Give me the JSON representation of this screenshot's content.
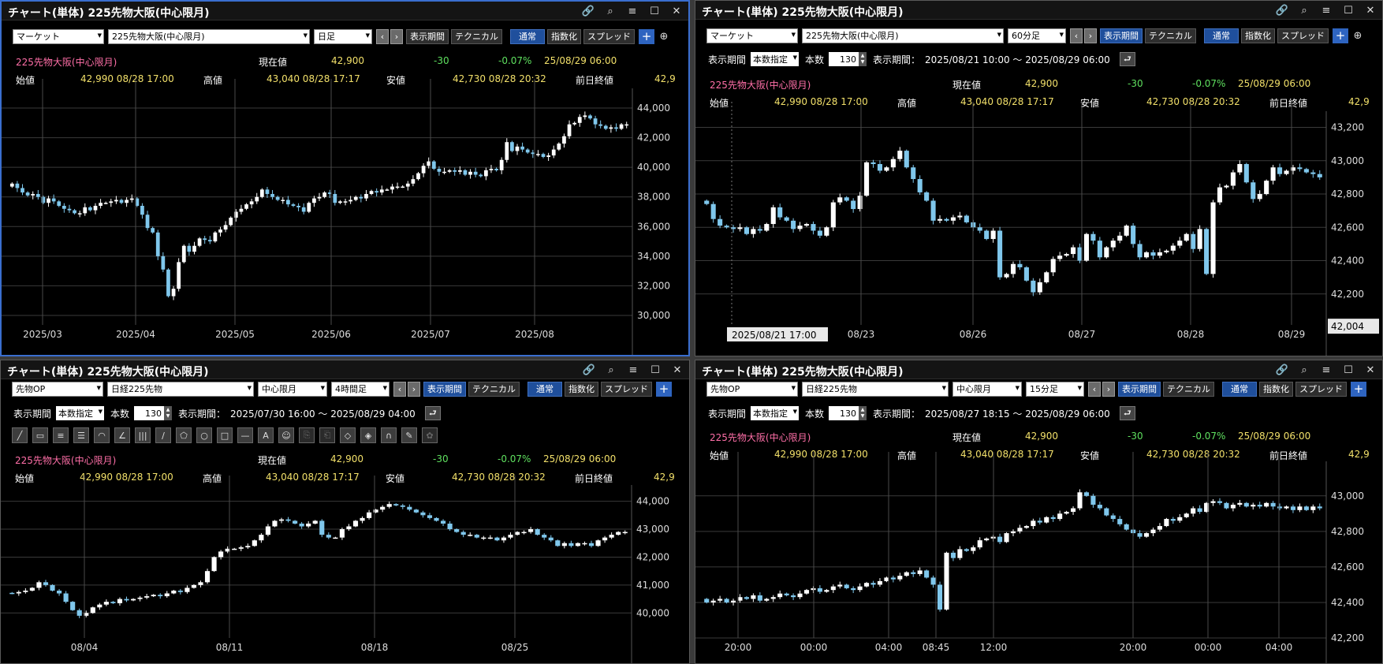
{
  "colors": {
    "up": "#ffffff",
    "down": "#7fc7ec",
    "grid": "#3a3a3a",
    "accent_blue": "#2e64c0",
    "pink": "#ff6fa8",
    "yellow": "#f2e06a",
    "green": "#5fe05f"
  },
  "icons": [
    "link-icon",
    "search-icon",
    "menu-icon",
    "maximize-icon",
    "close-icon",
    "zoom-icon",
    "plus-icon"
  ],
  "panels": [
    {
      "title": "チャート(単体) 225先物大阪(中心限月)",
      "controls": {
        "market": "マーケット",
        "symbol": "225先物大阪(中心限月)",
        "period": "日足",
        "display_period": "表示期間",
        "technical": "テクニカル",
        "normal": "通常",
        "index": "指数化",
        "spread": "スプレッド"
      },
      "info": {
        "name": "225先物大阪(中心限月)",
        "current_label": "現在値",
        "current": "42,900",
        "change": "-30",
        "change_pct": "-0.07%",
        "datetime": "25/08/29 06:00",
        "open_label": "始値",
        "open": "42,990 08/28 17:00",
        "high_label": "高値",
        "high": "43,040 08/28 17:17",
        "low_label": "安値",
        "low": "42,730 08/28 20:32",
        "prev_label": "前日終値",
        "prev": "42,9"
      },
      "chart_data": {
        "type": "candlestick",
        "y_ticks": [
          "44,000",
          "42,000",
          "40,000",
          "38,000",
          "36,000",
          "34,000",
          "32,000",
          "30,000"
        ],
        "ylim": [
          30000,
          44800
        ],
        "x_ticks": [
          "2025/03",
          "2025/04",
          "2025/05",
          "2025/06",
          "2025/07",
          "2025/08"
        ],
        "close": [
          38900,
          38600,
          38300,
          38100,
          38200,
          38000,
          37600,
          37900,
          37700,
          37400,
          37200,
          37100,
          36900,
          36900,
          37300,
          37100,
          37400,
          37600,
          37600,
          37700,
          37800,
          37600,
          37800,
          37900,
          37400,
          36800,
          35900,
          35600,
          34000,
          33100,
          31300,
          31800,
          33600,
          34700,
          34300,
          34700,
          35200,
          35100,
          35000,
          35600,
          35800,
          36100,
          36600,
          37000,
          37200,
          37500,
          37700,
          38000,
          38500,
          38200,
          38000,
          37800,
          37800,
          37500,
          37400,
          37300,
          37000,
          37600,
          37900,
          38000,
          38300,
          38200,
          37600,
          37700,
          37700,
          37800,
          38000,
          37900,
          38200,
          38400,
          38300,
          38500,
          38500,
          38700,
          38700,
          38700,
          38900,
          39200,
          39600,
          40100,
          40400,
          39900,
          39700,
          39700,
          39800,
          39700,
          39800,
          39500,
          39700,
          39500,
          39400,
          39800,
          39900,
          39800,
          40500,
          41700,
          41100,
          41400,
          41200,
          41000,
          40900,
          40900,
          40700,
          40800,
          41200,
          41600,
          42100,
          42900,
          43000,
          43400,
          43500,
          43300,
          42900,
          42800,
          42600,
          42700,
          42600,
          42900,
          42900
        ]
      },
      "data_source": "daily"
    },
    {
      "title": "チャート(単体) 225先物大阪(中心限月)",
      "controls": {
        "market": "マーケット",
        "symbol": "225先物大阪(中心限月)",
        "period": "60分足",
        "display_period": "表示期間",
        "technical": "テクニカル",
        "normal": "通常",
        "index": "指数化",
        "spread": "スプレッド"
      },
      "period_row": {
        "label": "表示期間",
        "mode": "本数指定",
        "count_label": "本数",
        "count": "130",
        "range_label": "表示期間：",
        "range": "2025/08/21 10:00 ～ 2025/08/29 06:00"
      },
      "info": {
        "name": "225先物大阪(中心限月)",
        "current_label": "現在値",
        "current": "42,900",
        "change": "-30",
        "change_pct": "-0.07%",
        "datetime": "25/08/29 06:00",
        "open_label": "始値",
        "open": "42,990 08/28 17:00",
        "high_label": "高値",
        "high": "43,040 08/28 17:17",
        "low_label": "安値",
        "low": "42,730 08/28 20:32",
        "prev_label": "前日終値",
        "prev": "42,9"
      },
      "chart_data": {
        "type": "candlestick",
        "y_ticks": [
          "43,200",
          "43,000",
          "42,800",
          "42,600",
          "42,400",
          "42,200"
        ],
        "ylim": [
          42000,
          43250
        ],
        "x_ticks": [
          "2025/08/21 17:00",
          "08/23",
          "08/26",
          "08/27",
          "08/28",
          "08/29"
        ],
        "cursor_price": "42,004",
        "close": [
          42740,
          42650,
          42610,
          42600,
          42590,
          42600,
          42560,
          42590,
          42580,
          42620,
          42720,
          42660,
          42640,
          42590,
          42610,
          42620,
          42580,
          42550,
          42600,
          42750,
          42780,
          42760,
          42710,
          42790,
          42990,
          42980,
          42940,
          42960,
          43010,
          43060,
          42960,
          42890,
          42810,
          42760,
          42640,
          42650,
          42640,
          42660,
          42670,
          42630,
          42600,
          42580,
          42530,
          42580,
          42300,
          42320,
          42380,
          42360,
          42280,
          42210,
          42270,
          42330,
          42410,
          42430,
          42440,
          42480,
          42400,
          42560,
          42520,
          42420,
          42480,
          42520,
          42550,
          42610,
          42500,
          42420,
          42450,
          42430,
          42450,
          42460,
          42490,
          42520,
          42560,
          42470,
          42590,
          42320,
          42750,
          42840,
          42850,
          42930,
          42980,
          42870,
          42770,
          42800,
          42880,
          42960,
          42920,
          42940,
          42960,
          42950,
          42930,
          42920,
          42900
        ]
      },
      "data_source": "hourly"
    },
    {
      "title": "チャート(単体) 225先物大阪(中心限月)",
      "controls": {
        "market": "先物OP",
        "symbol": "日経225先物",
        "month": "中心限月",
        "period": "4時間足",
        "display_period": "表示期間",
        "technical": "テクニカル",
        "normal": "通常",
        "index": "指数化",
        "spread": "スプレッド"
      },
      "period_row": {
        "label": "表示期間",
        "mode": "本数指定",
        "count_label": "本数",
        "count": "130",
        "range_label": "表示期間：",
        "range": "2025/07/30 16:00 ～ 2025/08/29 04:00"
      },
      "tools_icons": [
        "line-tool-icon",
        "ruler-tool-icon",
        "hlines-tool-icon",
        "hlines2-tool-icon",
        "arc-tool-icon",
        "fan-tool-icon",
        "vlines-tool-icon",
        "channel-tool-icon",
        "pentagon-tool-icon",
        "circle-tool-icon",
        "rect-tool-icon",
        "hline-tool-icon",
        "text-tool-icon",
        "stamp-tool-icon",
        "copy-tool-icon",
        "paste-tool-icon",
        "eraser-tool-icon",
        "eraser2-tool-icon",
        "magnet-tool-icon",
        "lock-tool-icon",
        "settings-tool-icon"
      ],
      "info": {
        "name": "225先物大阪(中心限月)",
        "current_label": "現在値",
        "current": "42,900",
        "change": "-30",
        "change_pct": "-0.07%",
        "datetime": "25/08/29 06:00",
        "open_label": "始値",
        "open": "42,990 08/28 17:00",
        "high_label": "高値",
        "high": "43,040 08/28 17:17",
        "low_label": "安値",
        "low": "42,730 08/28 20:32",
        "prev_label": "前日終値",
        "prev": "42,9"
      },
      "chart_data": {
        "type": "candlestick",
        "y_ticks": [
          "44,000",
          "43,000",
          "42,000",
          "41,000",
          "40,000"
        ],
        "ylim": [
          39500,
          44300
        ],
        "x_ticks": [
          "08/04",
          "08/11",
          "08/18",
          "08/25"
        ],
        "close": [
          40700,
          40750,
          40800,
          40900,
          41100,
          41000,
          40800,
          40700,
          40400,
          40100,
          39900,
          40000,
          40200,
          40300,
          40400,
          40350,
          40500,
          40450,
          40500,
          40550,
          40600,
          40650,
          40600,
          40700,
          40800,
          40750,
          40900,
          41000,
          41100,
          41500,
          42000,
          42200,
          42300,
          42300,
          42350,
          42400,
          42600,
          42800,
          43100,
          43300,
          43350,
          43300,
          43200,
          43100,
          43200,
          43300,
          42800,
          42700,
          42700,
          43000,
          43100,
          43300,
          43400,
          43600,
          43700,
          43800,
          43900,
          43850,
          43800,
          43700,
          43600,
          43500,
          43400,
          43300,
          43200,
          43000,
          42900,
          42800,
          42800,
          42700,
          42700,
          42700,
          42600,
          42700,
          42800,
          42900,
          42900,
          43000,
          42800,
          42700,
          42600,
          42400,
          42500,
          42400,
          42500,
          42500,
          42400,
          42600,
          42700,
          42800,
          42900,
          42900
        ]
      },
      "data_source": "4h"
    },
    {
      "title": "チャート(単体) 225先物大阪(中心限月)",
      "controls": {
        "market": "先物OP",
        "symbol": "日経225先物",
        "month": "中心限月",
        "period": "15分足",
        "display_period": "表示期間",
        "technical": "テクニカル",
        "normal": "通常",
        "index": "指数化",
        "spread": "スプレッド"
      },
      "period_row": {
        "label": "表示期間",
        "mode": "本数指定",
        "count_label": "本数",
        "count": "130",
        "range_label": "表示期間：",
        "range": "2025/08/27 18:15 ～ 2025/08/29 06:00"
      },
      "info": {
        "name": "225先物大阪(中心限月)",
        "current_label": "現在値",
        "current": "42,900",
        "change": "-30",
        "change_pct": "-0.07%",
        "datetime": "25/08/29 06:00",
        "open_label": "始値",
        "open": "42,990 08/28 17:00",
        "high_label": "高値",
        "high": "43,040 08/28 17:17",
        "low_label": "安値",
        "low": "42,730 08/28 20:32",
        "prev_label": "前日終値",
        "prev": "42,9"
      },
      "chart_data": {
        "type": "candlestick",
        "y_ticks": [
          "43,000",
          "42,800",
          "42,600",
          "42,400",
          "42,200"
        ],
        "ylim": [
          42200,
          43150
        ],
        "x_ticks": [
          "20:00",
          "00:00",
          "04:00",
          "08:45",
          "12:00",
          "20:00",
          "00:00",
          "04:00"
        ],
        "close": [
          42400,
          42410,
          42420,
          42400,
          42410,
          42430,
          42420,
          42440,
          42410,
          42420,
          42430,
          42450,
          42440,
          42430,
          42450,
          42470,
          42480,
          42460,
          42470,
          42490,
          42500,
          42480,
          42470,
          42490,
          42510,
          42500,
          42520,
          42540,
          42530,
          42550,
          42570,
          42560,
          42580,
          42540,
          42500,
          42360,
          42680,
          42650,
          42700,
          42690,
          42710,
          42750,
          42760,
          42770,
          42740,
          42790,
          42800,
          42820,
          42830,
          42860,
          42850,
          42880,
          42870,
          42900,
          42910,
          42930,
          43020,
          43000,
          42950,
          42930,
          42890,
          42870,
          42840,
          42810,
          42790,
          42770,
          42790,
          42810,
          42830,
          42870,
          42860,
          42880,
          42900,
          42930,
          42910,
          42960,
          42970,
          42960,
          42930,
          42950,
          42960,
          42940,
          42950,
          42940,
          42960,
          42940,
          42930,
          42940,
          42920,
          42940,
          42920,
          42940,
          42930
        ]
      },
      "data_source": "15m"
    }
  ]
}
